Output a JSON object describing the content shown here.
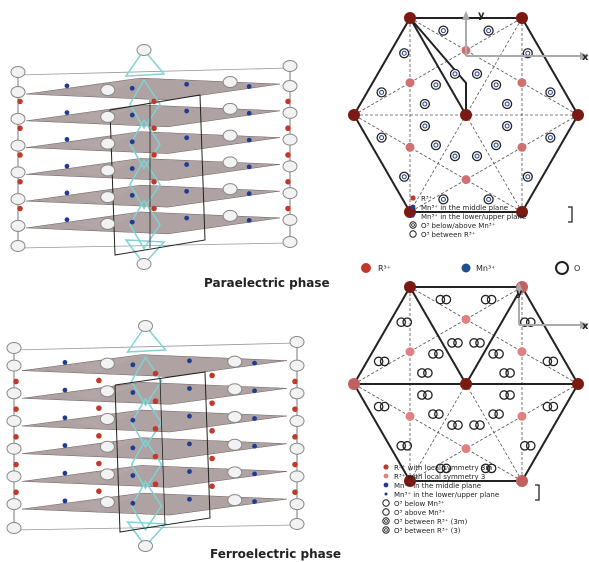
{
  "top": {
    "phase_label": "Paraelectric phase",
    "axis_x": "x",
    "axis_y": "y",
    "legend": [
      {
        "label": "R³⁺",
        "marker": "red-dot"
      },
      {
        "label": "Mn³⁺ in the middle plane",
        "marker": "blue-dot"
      },
      {
        "label": "Mn³⁺ in the lower/upper plane",
        "marker": "small-blue-dot"
      },
      {
        "label": "O³ below/above Mn³⁺",
        "marker": "double-ring"
      },
      {
        "label": "O³ between R³⁺",
        "marker": "ring"
      }
    ],
    "bottom_legend": [
      {
        "label": "R³⁺",
        "marker": "red-dot"
      },
      {
        "label": "Mn³⁺",
        "marker": "blue-dot"
      },
      {
        "label": "O",
        "marker": "ring"
      }
    ]
  },
  "bottom": {
    "phase_label": "Ferroelectric phase",
    "axis_x": "x",
    "axis_y": "y",
    "legend": [
      {
        "label": "R³⁺ with local symmetry 3m",
        "marker": "red-dot"
      },
      {
        "label": "R³⁺ with local symmetry 3",
        "marker": "pink-dot"
      },
      {
        "label": "Mn³⁺ in the middle plane",
        "marker": "blue-dot"
      },
      {
        "label": "Mn³⁺ in the lower/upper plane",
        "marker": "small-blue-dot"
      },
      {
        "label": "O³ below Mn³⁺",
        "marker": "ring"
      },
      {
        "label": "O³ above Mn³⁺",
        "marker": "ring"
      },
      {
        "label": "O³ between R³⁺ (3m)",
        "marker": "double-ring"
      },
      {
        "label": "O³ between R³⁺ (3)",
        "marker": "double-ring"
      }
    ]
  },
  "colors": {
    "r_ion": "#c0392b",
    "r_ion_dark": "#7a1a12",
    "mn_ion": "#1f3c8f",
    "plane": "#8c7b7b",
    "bond": "#7fd3d3",
    "line": "#333333"
  }
}
